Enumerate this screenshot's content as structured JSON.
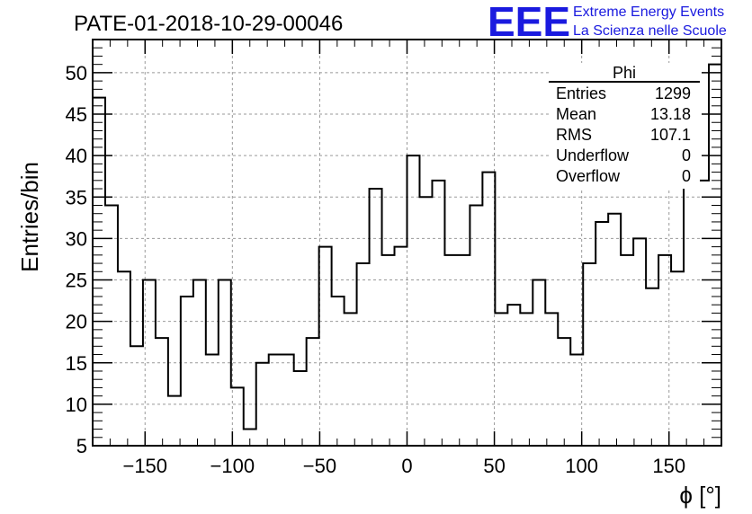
{
  "chart_data": {
    "type": "histogram",
    "title": "PATE-01-2018-10-29-00046",
    "xlabel": "ϕ [°]",
    "ylabel": "Entries/bin",
    "xlim": [
      -180,
      180
    ],
    "ylim": [
      5,
      54
    ],
    "bin_width": 7.2,
    "grid": true,
    "xticks": [
      -150,
      -100,
      -50,
      0,
      50,
      100,
      150
    ],
    "xtick_labels": [
      "−150",
      "−100",
      "−50",
      "0",
      "50",
      "100",
      "150"
    ],
    "yticks": [
      5,
      10,
      15,
      20,
      25,
      30,
      35,
      40,
      45,
      50
    ],
    "values": [
      47,
      34,
      26,
      17,
      25,
      18,
      11,
      23,
      25,
      16,
      25,
      12,
      7,
      15,
      16,
      16,
      14,
      18,
      29,
      23,
      21,
      27,
      36,
      28,
      29,
      40,
      35,
      37,
      28,
      28,
      34,
      38,
      21,
      22,
      21,
      25,
      21,
      18,
      16,
      27,
      32,
      33,
      28,
      30,
      24,
      28,
      26,
      41,
      37,
      51
    ],
    "stats": {
      "name": "Phi",
      "rows": [
        {
          "label": "Entries",
          "value": "1299"
        },
        {
          "label": "Mean",
          "value": "13.18"
        },
        {
          "label": "RMS",
          "value": "107.1"
        },
        {
          "label": "Underflow",
          "value": "0"
        },
        {
          "label": "Overflow",
          "value": "0"
        }
      ]
    }
  },
  "logo": {
    "mark": "EEE",
    "line1": "Extreme Energy Events",
    "line2": "La Scienza nelle Scuole",
    "color": "#1a1adf"
  }
}
